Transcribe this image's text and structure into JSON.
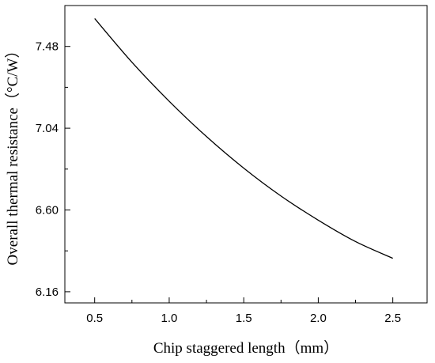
{
  "chart_data": {
    "type": "line",
    "title": "",
    "xlabel": "Chip staggered length（mm）",
    "ylabel": "Overall thermal resistance（°C/W）",
    "xlim": [
      0.3,
      2.73
    ],
    "ylim": [
      6.1,
      7.7
    ],
    "x_ticks": [
      0.5,
      1.0,
      1.5,
      2.0,
      2.5
    ],
    "x_tick_labels": [
      "0.5",
      "1.0",
      "1.5",
      "2.0",
      "2.5"
    ],
    "y_ticks": [
      6.16,
      6.6,
      7.04,
      7.48
    ],
    "y_tick_labels": [
      "6.16",
      "6.60",
      "7.04",
      "7.48"
    ],
    "grid": false,
    "legend": "none",
    "line_color": "#000000",
    "series": [
      {
        "x": [
          0.5,
          0.75,
          1.0,
          1.25,
          1.5,
          1.75,
          2.0,
          2.25,
          2.5
        ],
        "y": [
          7.63,
          7.395,
          7.185,
          6.995,
          6.825,
          6.675,
          6.545,
          6.43,
          6.34
        ]
      }
    ]
  }
}
